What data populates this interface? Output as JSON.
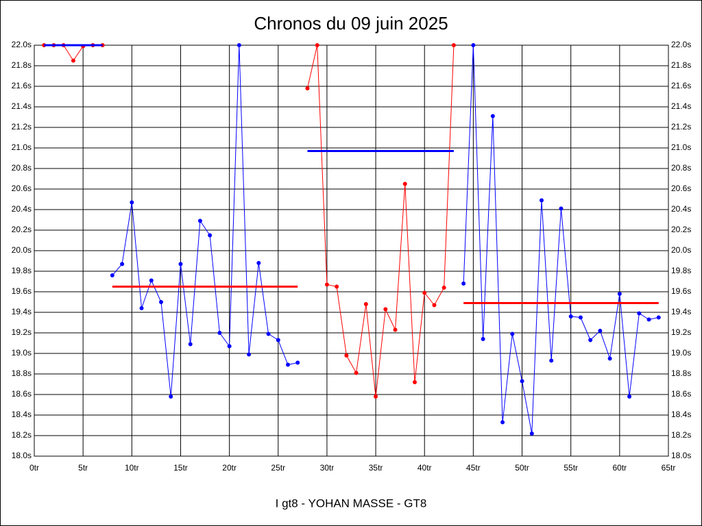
{
  "chart_data": {
    "type": "line",
    "title": "Chronos du 09 juin 2025",
    "xlabel": "I gt8 - YOHAN MASSE - GT8",
    "xlim": [
      0,
      65
    ],
    "xticks": [
      {
        "value": 0,
        "label": "0tr"
      },
      {
        "value": 5,
        "label": "5tr"
      },
      {
        "value": 10,
        "label": "10tr"
      },
      {
        "value": 15,
        "label": "15tr"
      },
      {
        "value": 20,
        "label": "20tr"
      },
      {
        "value": 25,
        "label": "25tr"
      },
      {
        "value": 30,
        "label": "30tr"
      },
      {
        "value": 35,
        "label": "35tr"
      },
      {
        "value": 40,
        "label": "40tr"
      },
      {
        "value": 45,
        "label": "45tr"
      },
      {
        "value": 50,
        "label": "50tr"
      },
      {
        "value": 55,
        "label": "55tr"
      },
      {
        "value": 60,
        "label": "60tr"
      },
      {
        "value": 65,
        "label": "65tr"
      }
    ],
    "ylim": [
      18.0,
      22.0
    ],
    "yticks": [
      {
        "value": 18.0,
        "label": "18.0s"
      },
      {
        "value": 18.2,
        "label": "18.2s"
      },
      {
        "value": 18.4,
        "label": "18.4s"
      },
      {
        "value": 18.6,
        "label": "18.6s"
      },
      {
        "value": 18.8,
        "label": "18.8s"
      },
      {
        "value": 19.0,
        "label": "19.0s"
      },
      {
        "value": 19.2,
        "label": "19.2s"
      },
      {
        "value": 19.4,
        "label": "19.4s"
      },
      {
        "value": 19.6,
        "label": "19.6s"
      },
      {
        "value": 19.8,
        "label": "19.8s"
      },
      {
        "value": 20.0,
        "label": "20.0s"
      },
      {
        "value": 20.2,
        "label": "20.2s"
      },
      {
        "value": 20.4,
        "label": "20.4s"
      },
      {
        "value": 20.6,
        "label": "20.6s"
      },
      {
        "value": 20.8,
        "label": "20.8s"
      },
      {
        "value": 21.0,
        "label": "21.0s"
      },
      {
        "value": 21.2,
        "label": "21.2s"
      },
      {
        "value": 21.4,
        "label": "21.4s"
      },
      {
        "value": 21.6,
        "label": "21.6s"
      },
      {
        "value": 21.8,
        "label": "21.8s"
      },
      {
        "value": 22.0,
        "label": "22.0s"
      }
    ],
    "grid": true,
    "series": [
      {
        "color": "#ff0000",
        "x": [
          1,
          2,
          3,
          4,
          5,
          6,
          7
        ],
        "values": [
          22.0,
          22.0,
          22.0,
          21.85,
          21.99,
          22.0,
          22.0
        ]
      },
      {
        "color": "#0000ff",
        "x": [
          8,
          9,
          10,
          11,
          12,
          13,
          14,
          15,
          16,
          17,
          18,
          19,
          20,
          21,
          22,
          23,
          24,
          25,
          26,
          27
        ],
        "values": [
          19.76,
          19.87,
          20.47,
          19.44,
          19.71,
          19.5,
          18.58,
          19.87,
          19.09,
          20.29,
          20.15,
          19.2,
          19.07,
          22.0,
          18.99,
          19.88,
          19.19,
          19.13,
          18.89,
          18.91
        ]
      },
      {
        "color": "#ff0000",
        "x": [
          28,
          29,
          30,
          31,
          32,
          33,
          34,
          35,
          36,
          37,
          38,
          39,
          40,
          41,
          42,
          43
        ],
        "values": [
          21.58,
          22.0,
          19.67,
          19.65,
          18.98,
          18.81,
          19.48,
          18.58,
          19.43,
          19.23,
          20.65,
          18.72,
          19.59,
          19.47,
          19.64,
          22.0
        ]
      },
      {
        "color": "#0000ff",
        "x": [
          44,
          45,
          46,
          47,
          48,
          49,
          50,
          51,
          52,
          53,
          54,
          55,
          56,
          57,
          58,
          59,
          60,
          61,
          62,
          63,
          64
        ],
        "values": [
          19.68,
          22.0,
          19.14,
          21.31,
          18.33,
          19.19,
          18.73,
          18.22,
          20.49,
          18.93,
          20.41,
          19.36,
          19.35,
          19.13,
          19.22,
          18.95,
          19.58,
          18.58,
          19.39,
          19.33,
          19.35
        ]
      }
    ],
    "averages": [
      {
        "color": "#0000ff",
        "x": [
          1,
          7
        ],
        "value": 22.0
      },
      {
        "color": "#ff0000",
        "x": [
          8,
          27
        ],
        "value": 19.65
      },
      {
        "color": "#0000ff",
        "x": [
          28,
          43
        ],
        "value": 20.97
      },
      {
        "color": "#ff0000",
        "x": [
          44,
          64
        ],
        "value": 19.49
      }
    ]
  }
}
